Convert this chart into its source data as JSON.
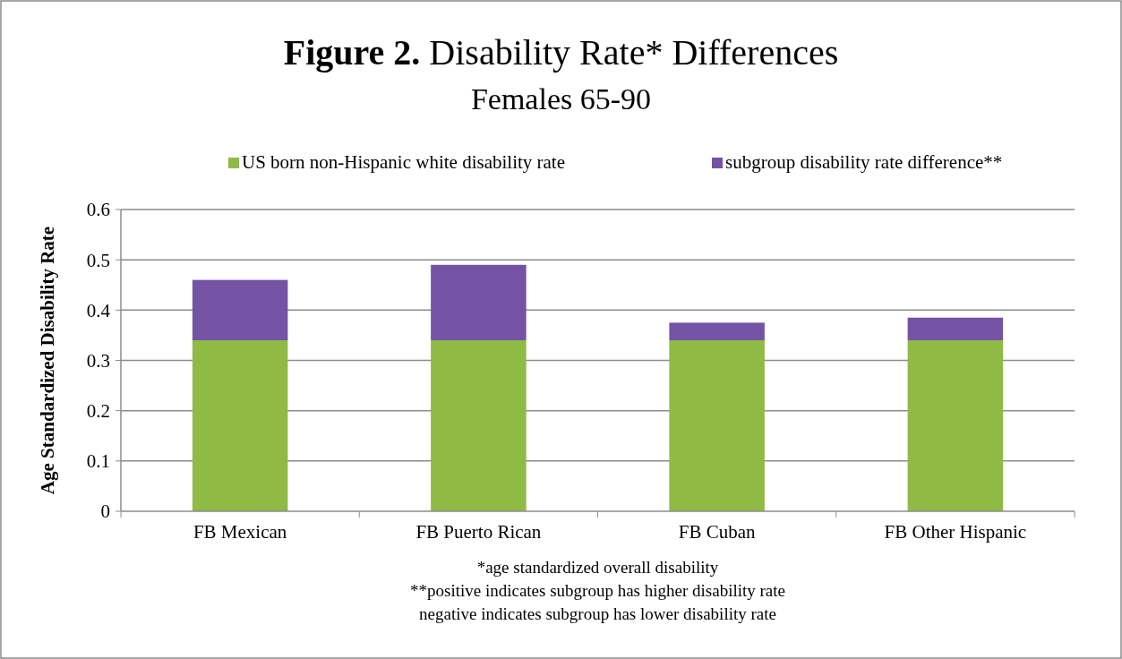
{
  "chart_data": {
    "type": "bar",
    "title": "Figure 2. Disability Rate* Differences",
    "subtitle": "Females 65-90",
    "ylabel": "Age Standardized Disability Rate",
    "categories": [
      "FB Mexican",
      "FB Puerto Rican",
      "FB Cuban",
      "FB Other Hispanic"
    ],
    "series": [
      {
        "name": "US born non-Hispanic white disability rate",
        "color": "#8fba44",
        "values": [
          0.34,
          0.34,
          0.34,
          0.34
        ]
      },
      {
        "name": "subgroup disability rate difference**",
        "color": "#7453a5",
        "values": [
          0.12,
          0.15,
          0.035,
          0.045
        ]
      }
    ],
    "stacked": true,
    "ylim": [
      0,
      0.6
    ],
    "yticks": [
      0,
      0.1,
      0.2,
      0.3,
      0.4,
      0.5,
      0.6
    ],
    "grid": "y",
    "legend": "top",
    "annotations": [
      "*age standardized overall disability",
      "**positive indicates subgroup has higher disability rate",
      "negative indicates subgroup has lower disability rate"
    ]
  }
}
